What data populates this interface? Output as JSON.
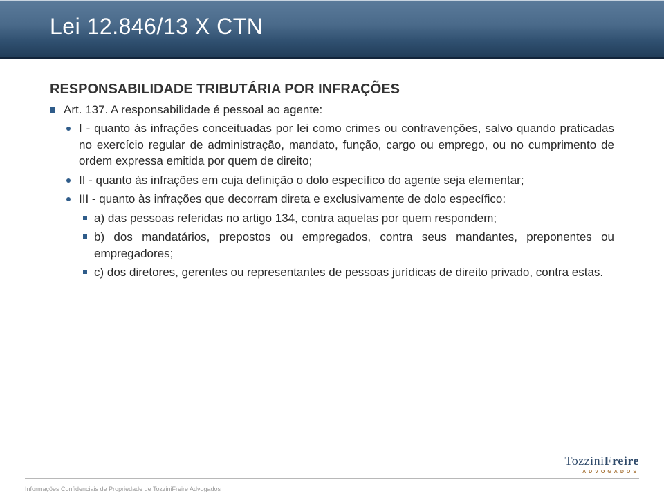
{
  "colors": {
    "header_gradient_top": "#5a7a9a",
    "header_gradient_bottom": "#1f3a55",
    "header_bottom_edge": "#12243a",
    "title_color": "#ffffff",
    "text_color": "#2a2a2a",
    "bullet_color": "#2f5c8a",
    "footer_line": "#b8b8b8",
    "footer_text": "#9a9a9a",
    "logo_blue": "#2f4a6a",
    "logo_gold": "#a8753a",
    "background": "#ffffff"
  },
  "typography": {
    "title_fontsize": 32,
    "subtitle_fontsize": 20,
    "body_fontsize": 17,
    "footer_fontsize": 9,
    "logo_main_fontsize": 18,
    "logo_sub_fontsize": 7,
    "font_family": "Verdana"
  },
  "title": "Lei 12.846/13 X CTN",
  "subtitle": "RESPONSABILIDADE TRIBUTÁRIA POR INFRAÇÕES",
  "article": {
    "heading": "Art. 137. A responsabilidade é pessoal ao agente:",
    "items": [
      {
        "text": "I - quanto às infrações conceituadas por lei como crimes ou contravenções, salvo quando praticadas no exercício regular de administração, mandato, função, cargo ou emprego, ou no cumprimento de ordem expressa emitida por quem de direito;"
      },
      {
        "text": "II - quanto às infrações em cuja definição o dolo específico do agente seja elementar;"
      },
      {
        "text": "III - quanto às infrações que decorram direta e exclusivamente de dolo específico:",
        "subitems": [
          "a) das pessoas referidas no artigo 134, contra aquelas por quem respondem;",
          "b) dos mandatários, prepostos ou empregados, contra seus mandantes, preponentes ou empregadores;",
          "c) dos diretores, gerentes ou representantes de pessoas jurídicas de direito privado, contra estas."
        ]
      }
    ]
  },
  "footer": "Informações Confidenciais de Propriedade de TozziniFreire Advogados",
  "logo": {
    "part1": "Tozzini",
    "part2": "Freire",
    "sub": "ADVOGADOS"
  }
}
